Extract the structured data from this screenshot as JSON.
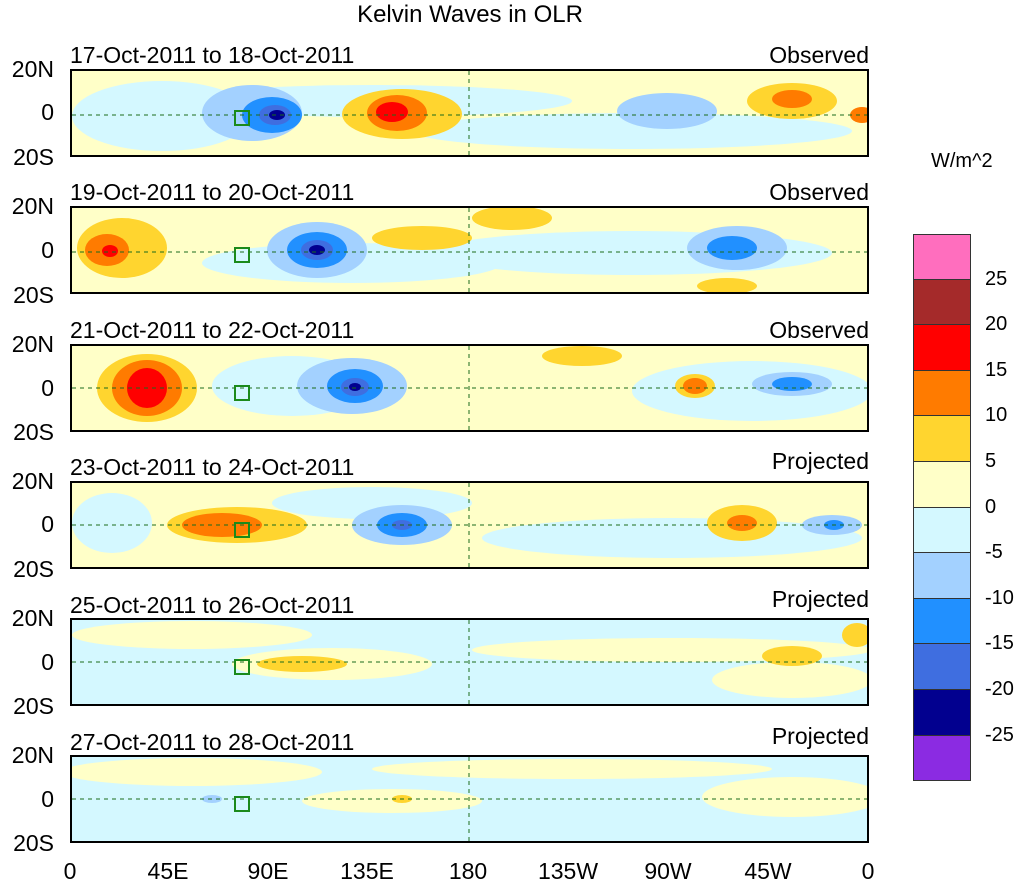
{
  "title": "Kelvin Waves in OLR",
  "units": "W/m^2",
  "lat_labels": [
    "20N",
    "0",
    "20S"
  ],
  "lon_labels": [
    "0",
    "45E",
    "90E",
    "135E",
    "180",
    "135W",
    "90W",
    "45W",
    "0"
  ],
  "panels": [
    {
      "date": "17-Oct-2011 to 18-Oct-2011",
      "status": "Observed"
    },
    {
      "date": "19-Oct-2011 to 20-Oct-2011",
      "status": "Observed"
    },
    {
      "date": "21-Oct-2011 to 22-Oct-2011",
      "status": "Observed"
    },
    {
      "date": "23-Oct-2011 to 24-Oct-2011",
      "status": "Projected"
    },
    {
      "date": "25-Oct-2011 to 26-Oct-2011",
      "status": "Projected"
    },
    {
      "date": "27-Oct-2011 to 28-Oct-2011",
      "status": "Projected"
    }
  ],
  "colorbar": {
    "colors": [
      "#ff6ebe",
      "#a52a2a",
      "#ff0000",
      "#ff7b00",
      "#ffd52f",
      "#ffffc8",
      "#d4f8ff",
      "#a3d1ff",
      "#2190ff",
      "#3f6ee0",
      "#02008f",
      "#8b2be2"
    ],
    "labels": [
      "25",
      "20",
      "15",
      "10",
      "5",
      "0",
      "-5",
      "-10",
      "-15",
      "-20",
      "-25"
    ]
  }
}
